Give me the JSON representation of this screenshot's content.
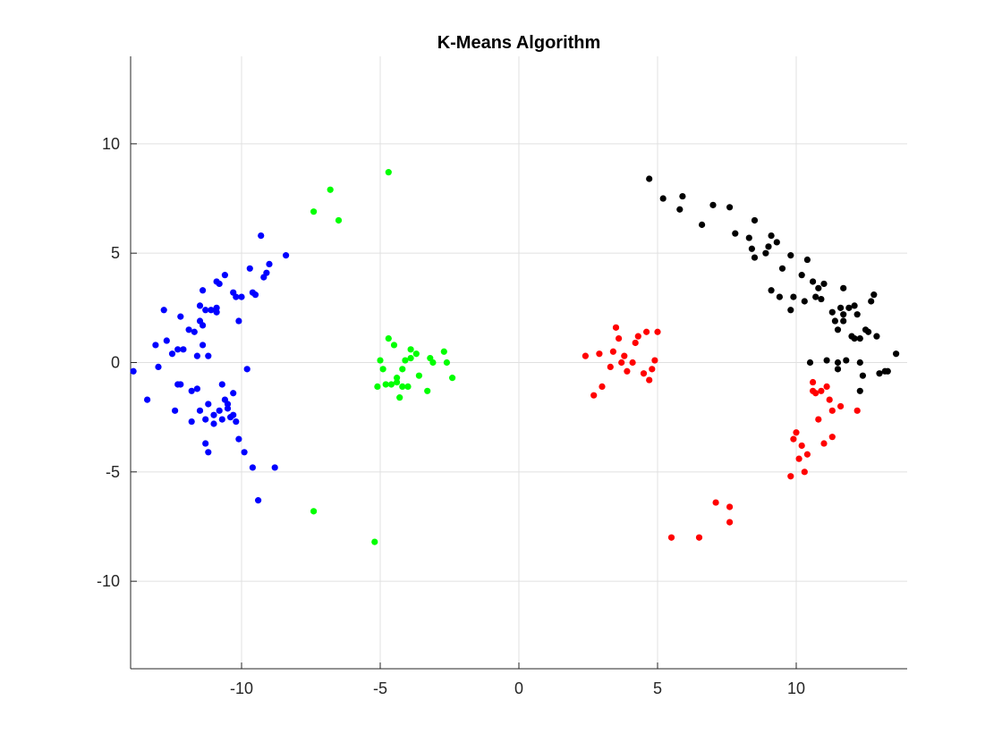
{
  "chart_data": {
    "type": "scatter",
    "title": "K-Means Algorithm",
    "xlabel": "",
    "ylabel": "",
    "xlim": [
      -14,
      14
    ],
    "ylim": [
      -14,
      14
    ],
    "xticks": [
      -10,
      -5,
      0,
      5,
      10
    ],
    "yticks": [
      -10,
      -5,
      0,
      5,
      10
    ],
    "xtick_labels": [
      "-10",
      "-5",
      "0",
      "5",
      "10"
    ],
    "ytick_labels": [
      "-10",
      "-5",
      "0",
      "5",
      "10"
    ],
    "grid": true,
    "legend": "none",
    "series": [
      {
        "color": "#0000ff",
        "points": [
          [
            -13.9,
            -0.4
          ],
          [
            -13.4,
            -1.7
          ],
          [
            -13.1,
            0.8
          ],
          [
            -13.0,
            -0.2
          ],
          [
            -12.8,
            2.4
          ],
          [
            -12.7,
            1.0
          ],
          [
            -12.5,
            0.4
          ],
          [
            -12.4,
            -2.2
          ],
          [
            -12.3,
            0.6
          ],
          [
            -12.3,
            -1.0
          ],
          [
            -12.2,
            2.1
          ],
          [
            -12.2,
            -1.0
          ],
          [
            -12.1,
            0.6
          ],
          [
            -11.9,
            1.5
          ],
          [
            -11.8,
            -2.7
          ],
          [
            -11.8,
            -1.3
          ],
          [
            -11.7,
            1.4
          ],
          [
            -11.6,
            0.3
          ],
          [
            -11.6,
            -1.2
          ],
          [
            -11.5,
            2.6
          ],
          [
            -11.5,
            1.9
          ],
          [
            -11.5,
            -2.2
          ],
          [
            -11.4,
            3.3
          ],
          [
            -11.4,
            1.7
          ],
          [
            -11.4,
            0.8
          ],
          [
            -11.3,
            2.4
          ],
          [
            -11.3,
            -2.6
          ],
          [
            -11.3,
            -3.7
          ],
          [
            -11.2,
            -4.1
          ],
          [
            -11.2,
            -1.9
          ],
          [
            -11.2,
            0.3
          ],
          [
            -11.1,
            2.4
          ],
          [
            -11.0,
            -2.4
          ],
          [
            -11.0,
            -2.8
          ],
          [
            -10.9,
            3.7
          ],
          [
            -10.9,
            2.3
          ],
          [
            -10.9,
            2.5
          ],
          [
            -10.8,
            3.6
          ],
          [
            -10.8,
            -2.2
          ],
          [
            -10.7,
            -1.0
          ],
          [
            -10.7,
            -2.6
          ],
          [
            -10.6,
            4.0
          ],
          [
            -10.6,
            -1.7
          ],
          [
            -10.5,
            -2.1
          ],
          [
            -10.5,
            -1.9
          ],
          [
            -10.4,
            -2.5
          ],
          [
            -10.3,
            3.2
          ],
          [
            -10.3,
            -2.4
          ],
          [
            -10.3,
            -1.4
          ],
          [
            -10.2,
            3.0
          ],
          [
            -10.2,
            -2.7
          ],
          [
            -10.1,
            1.9
          ],
          [
            -10.1,
            -3.5
          ],
          [
            -10.0,
            3.0
          ],
          [
            -9.9,
            -4.1
          ],
          [
            -9.8,
            -0.3
          ],
          [
            -9.7,
            4.3
          ],
          [
            -9.6,
            3.2
          ],
          [
            -9.5,
            3.1
          ],
          [
            -9.3,
            5.8
          ],
          [
            -9.2,
            3.9
          ],
          [
            -9.1,
            4.1
          ],
          [
            -9.0,
            4.5
          ],
          [
            -8.4,
            4.9
          ],
          [
            -9.6,
            -4.8
          ],
          [
            -8.8,
            -4.8
          ],
          [
            -9.4,
            -6.3
          ]
        ]
      },
      {
        "color": "#00ff00",
        "points": [
          [
            -7.4,
            6.9
          ],
          [
            -6.8,
            7.9
          ],
          [
            -6.5,
            6.5
          ],
          [
            -4.7,
            8.7
          ],
          [
            -7.4,
            -6.8
          ],
          [
            -5.2,
            -8.2
          ],
          [
            -5.1,
            -1.1
          ],
          [
            -5.0,
            0.1
          ],
          [
            -4.9,
            -0.3
          ],
          [
            -4.8,
            -1.0
          ],
          [
            -4.7,
            1.1
          ],
          [
            -4.6,
            -1.0
          ],
          [
            -4.5,
            0.8
          ],
          [
            -4.4,
            -0.9
          ],
          [
            -4.4,
            -0.7
          ],
          [
            -4.3,
            -1.6
          ],
          [
            -4.2,
            -0.3
          ],
          [
            -4.2,
            -1.1
          ],
          [
            -4.1,
            0.1
          ],
          [
            -4.0,
            -1.1
          ],
          [
            -3.9,
            0.6
          ],
          [
            -3.9,
            0.2
          ],
          [
            -3.7,
            0.4
          ],
          [
            -3.6,
            -0.6
          ],
          [
            -3.3,
            -1.3
          ],
          [
            -3.2,
            0.2
          ],
          [
            -3.1,
            0.0
          ],
          [
            -2.7,
            0.5
          ],
          [
            -2.6,
            0.0
          ],
          [
            -2.4,
            -0.7
          ]
        ]
      },
      {
        "color": "#ff0000",
        "points": [
          [
            2.4,
            0.3
          ],
          [
            2.7,
            -1.5
          ],
          [
            2.9,
            0.4
          ],
          [
            3.0,
            -1.1
          ],
          [
            3.3,
            -0.2
          ],
          [
            3.4,
            0.5
          ],
          [
            3.5,
            1.6
          ],
          [
            3.6,
            1.1
          ],
          [
            3.7,
            0.0
          ],
          [
            3.8,
            0.3
          ],
          [
            3.9,
            -0.4
          ],
          [
            4.1,
            0.0
          ],
          [
            4.2,
            0.9
          ],
          [
            4.3,
            1.2
          ],
          [
            4.5,
            -0.5
          ],
          [
            4.6,
            1.4
          ],
          [
            4.7,
            -0.8
          ],
          [
            4.8,
            -0.3
          ],
          [
            4.9,
            0.1
          ],
          [
            5.0,
            1.4
          ],
          [
            5.5,
            -8.0
          ],
          [
            6.5,
            -8.0
          ],
          [
            7.1,
            -6.4
          ],
          [
            7.6,
            -6.6
          ],
          [
            7.6,
            -7.3
          ],
          [
            9.8,
            -5.2
          ],
          [
            9.9,
            -3.5
          ],
          [
            10.0,
            -3.2
          ],
          [
            10.1,
            -4.4
          ],
          [
            10.2,
            -3.8
          ],
          [
            10.3,
            -5.0
          ],
          [
            10.4,
            -4.2
          ],
          [
            10.6,
            -0.9
          ],
          [
            10.6,
            -1.3
          ],
          [
            10.7,
            -1.4
          ],
          [
            10.8,
            -2.6
          ],
          [
            10.9,
            -1.3
          ],
          [
            11.0,
            -3.7
          ],
          [
            11.1,
            -1.1
          ],
          [
            11.2,
            -1.7
          ],
          [
            11.3,
            -2.2
          ],
          [
            11.3,
            -3.4
          ],
          [
            11.6,
            -2.0
          ],
          [
            12.2,
            -2.2
          ]
        ]
      },
      {
        "color": "#000000",
        "points": [
          [
            4.7,
            8.4
          ],
          [
            5.2,
            7.5
          ],
          [
            5.8,
            7.0
          ],
          [
            5.9,
            7.6
          ],
          [
            6.6,
            6.3
          ],
          [
            7.0,
            7.2
          ],
          [
            7.6,
            7.1
          ],
          [
            7.8,
            5.9
          ],
          [
            8.3,
            5.7
          ],
          [
            8.4,
            5.2
          ],
          [
            8.5,
            6.5
          ],
          [
            8.5,
            4.8
          ],
          [
            8.9,
            5.0
          ],
          [
            9.0,
            5.3
          ],
          [
            9.1,
            3.3
          ],
          [
            9.1,
            5.8
          ],
          [
            9.3,
            5.5
          ],
          [
            9.4,
            3.0
          ],
          [
            9.5,
            4.3
          ],
          [
            9.8,
            4.9
          ],
          [
            9.8,
            2.4
          ],
          [
            9.9,
            3.0
          ],
          [
            10.2,
            4.0
          ],
          [
            10.3,
            2.8
          ],
          [
            10.4,
            4.7
          ],
          [
            10.5,
            0.0
          ],
          [
            10.6,
            3.7
          ],
          [
            10.7,
            3.0
          ],
          [
            10.8,
            3.4
          ],
          [
            10.9,
            2.9
          ],
          [
            11.0,
            3.6
          ],
          [
            11.1,
            0.1
          ],
          [
            11.3,
            2.3
          ],
          [
            11.4,
            1.9
          ],
          [
            11.5,
            1.5
          ],
          [
            11.5,
            0.0
          ],
          [
            11.5,
            -0.3
          ],
          [
            11.6,
            2.5
          ],
          [
            11.7,
            3.4
          ],
          [
            11.7,
            2.2
          ],
          [
            11.7,
            1.9
          ],
          [
            11.8,
            0.1
          ],
          [
            11.9,
            2.5
          ],
          [
            12.0,
            1.2
          ],
          [
            12.1,
            2.6
          ],
          [
            12.1,
            1.1
          ],
          [
            12.2,
            2.2
          ],
          [
            12.3,
            1.1
          ],
          [
            12.3,
            0.0
          ],
          [
            12.3,
            -1.3
          ],
          [
            12.4,
            -0.6
          ],
          [
            12.5,
            1.5
          ],
          [
            12.6,
            1.4
          ],
          [
            12.7,
            2.8
          ],
          [
            12.8,
            3.1
          ],
          [
            12.9,
            1.2
          ],
          [
            13.0,
            -0.5
          ],
          [
            13.2,
            -0.4
          ],
          [
            13.3,
            -0.4
          ],
          [
            13.6,
            0.4
          ]
        ]
      }
    ]
  }
}
